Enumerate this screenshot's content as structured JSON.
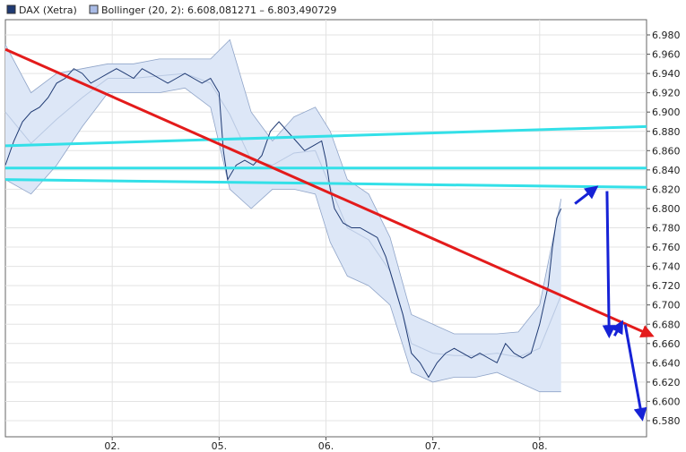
{
  "chart_data": {
    "type": "line",
    "legend": [
      {
        "name": "DAX (Xetra)",
        "swatch_color": "#1f3a73"
      },
      {
        "name": "Bollinger (20, 2): 6.608,081271 – 6.803,490729",
        "swatch_color": "#a9bbe6"
      }
    ],
    "y_ticks": [
      "6.980",
      "6.960",
      "6.940",
      "6.920",
      "6.900",
      "6.880",
      "6.860",
      "6.840",
      "6.820",
      "6.800",
      "6.780",
      "6.760",
      "6.740",
      "6.720",
      "6.700",
      "6.680",
      "6.660",
      "6.640",
      "6.620",
      "6.600",
      "6.580"
    ],
    "ylim": [
      6570,
      6995
    ],
    "x_ticks": [
      {
        "label": "02.",
        "x": 1.0
      },
      {
        "label": "05.",
        "x": 2.0
      },
      {
        "label": "06.",
        "x": 3.0
      },
      {
        "label": "07.",
        "x": 4.0
      },
      {
        "label": "08.",
        "x": 5.0
      }
    ],
    "xlim": [
      0.0,
      6.0
    ],
    "grid": true,
    "colors": {
      "price_line": "#1f3a73",
      "band_fill": "#dde7f7",
      "band_edge": "#8fa4c8",
      "middle_band": "#b9c9e3",
      "trend_red": "#e31b1b",
      "support_cyan": "#33e0e8",
      "arrow_blue": "#1622d6",
      "grid": "#e3e3e3",
      "axis": "#555555"
    },
    "series": [
      {
        "name": "DAX (Xetra)",
        "x": [
          0.0,
          0.08,
          0.16,
          0.24,
          0.32,
          0.4,
          0.48,
          0.56,
          0.64,
          0.72,
          0.8,
          0.88,
          0.96,
          1.04,
          1.12,
          1.2,
          1.28,
          1.36,
          1.44,
          1.52,
          1.6,
          1.68,
          1.76,
          1.84,
          1.92,
          2.0,
          2.04,
          2.08,
          2.16,
          2.24,
          2.32,
          2.4,
          2.48,
          2.56,
          2.64,
          2.72,
          2.8,
          2.88,
          2.96,
          3.0,
          3.04,
          3.08,
          3.16,
          3.24,
          3.32,
          3.4,
          3.48,
          3.56,
          3.64,
          3.72,
          3.8,
          3.88,
          3.96,
          4.04,
          4.12,
          4.2,
          4.28,
          4.36,
          4.44,
          4.52,
          4.6,
          4.68,
          4.76,
          4.84,
          4.92,
          5.0,
          5.04,
          5.08,
          5.12,
          5.16,
          5.2
        ],
        "y": [
          6845,
          6870,
          6890,
          6900,
          6905,
          6915,
          6930,
          6935,
          6945,
          6940,
          6930,
          6935,
          6940,
          6945,
          6940,
          6935,
          6945,
          6940,
          6935,
          6930,
          6935,
          6940,
          6935,
          6930,
          6935,
          6920,
          6860,
          6830,
          6845,
          6850,
          6845,
          6855,
          6880,
          6890,
          6880,
          6870,
          6860,
          6865,
          6870,
          6850,
          6820,
          6800,
          6785,
          6780,
          6780,
          6775,
          6770,
          6750,
          6720,
          6690,
          6650,
          6640,
          6625,
          6640,
          6650,
          6655,
          6650,
          6645,
          6650,
          6645,
          6640,
          6660,
          6650,
          6645,
          6650,
          6680,
          6700,
          6720,
          6760,
          6790,
          6800
        ]
      },
      {
        "name": "Bollinger upper",
        "x": [
          0.0,
          0.24,
          0.48,
          0.72,
          0.96,
          1.2,
          1.44,
          1.68,
          1.92,
          2.1,
          2.3,
          2.5,
          2.7,
          2.9,
          3.04,
          3.2,
          3.4,
          3.6,
          3.8,
          4.0,
          4.2,
          4.4,
          4.6,
          4.8,
          5.0,
          5.2
        ],
        "y": [
          6970,
          6920,
          6940,
          6945,
          6950,
          6950,
          6955,
          6955,
          6955,
          6975,
          6900,
          6870,
          6895,
          6905,
          6880,
          6830,
          6815,
          6770,
          6690,
          6680,
          6670,
          6670,
          6670,
          6672,
          6700,
          6810
        ]
      },
      {
        "name": "Bollinger lower",
        "x": [
          0.0,
          0.24,
          0.48,
          0.72,
          0.96,
          1.2,
          1.44,
          1.68,
          1.92,
          2.1,
          2.3,
          2.5,
          2.7,
          2.9,
          3.04,
          3.2,
          3.4,
          3.6,
          3.8,
          4.0,
          4.2,
          4.4,
          4.6,
          4.8,
          5.0,
          5.2
        ],
        "y": [
          6830,
          6815,
          6845,
          6885,
          6920,
          6920,
          6920,
          6925,
          6905,
          6820,
          6800,
          6820,
          6820,
          6815,
          6765,
          6730,
          6720,
          6700,
          6630,
          6620,
          6625,
          6625,
          6630,
          6620,
          6610,
          6610
        ]
      }
    ],
    "annotations": {
      "red_trend": {
        "x": [
          0.0,
          6.0
        ],
        "y": [
          6965,
          6670
        ]
      },
      "cyan_lines": [
        {
          "x": [
            0.0,
            6.0
          ],
          "y": [
            6865,
            6885
          ]
        },
        {
          "x": [
            0.0,
            6.0
          ],
          "y": [
            6842,
            6842
          ]
        },
        {
          "x": [
            0.0,
            6.0
          ],
          "y": [
            6830,
            6822
          ]
        }
      ],
      "blue_arrows": [
        {
          "from": [
            5.33,
            6805
          ],
          "to": [
            5.53,
            6822
          ]
        },
        {
          "from": [
            5.63,
            6818
          ],
          "to": [
            5.65,
            6668
          ]
        },
        {
          "from": [
            5.7,
            6668
          ],
          "to": [
            5.77,
            6682
          ]
        },
        {
          "from": [
            5.8,
            6680
          ],
          "to": [
            5.96,
            6582
          ]
        }
      ]
    }
  }
}
